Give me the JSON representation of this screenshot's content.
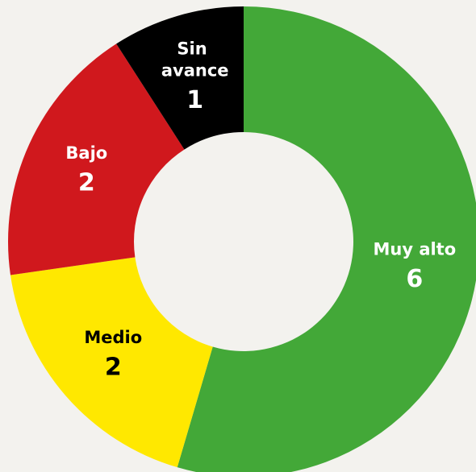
{
  "chart_data": {
    "type": "donut",
    "categories": [
      "Muy alto",
      "Medio",
      "Bajo",
      "Sin avance"
    ],
    "values": [
      6,
      2,
      2,
      1
    ],
    "colors": [
      "#43a838",
      "#ffe800",
      "#d0181d",
      "#000000"
    ]
  }
}
